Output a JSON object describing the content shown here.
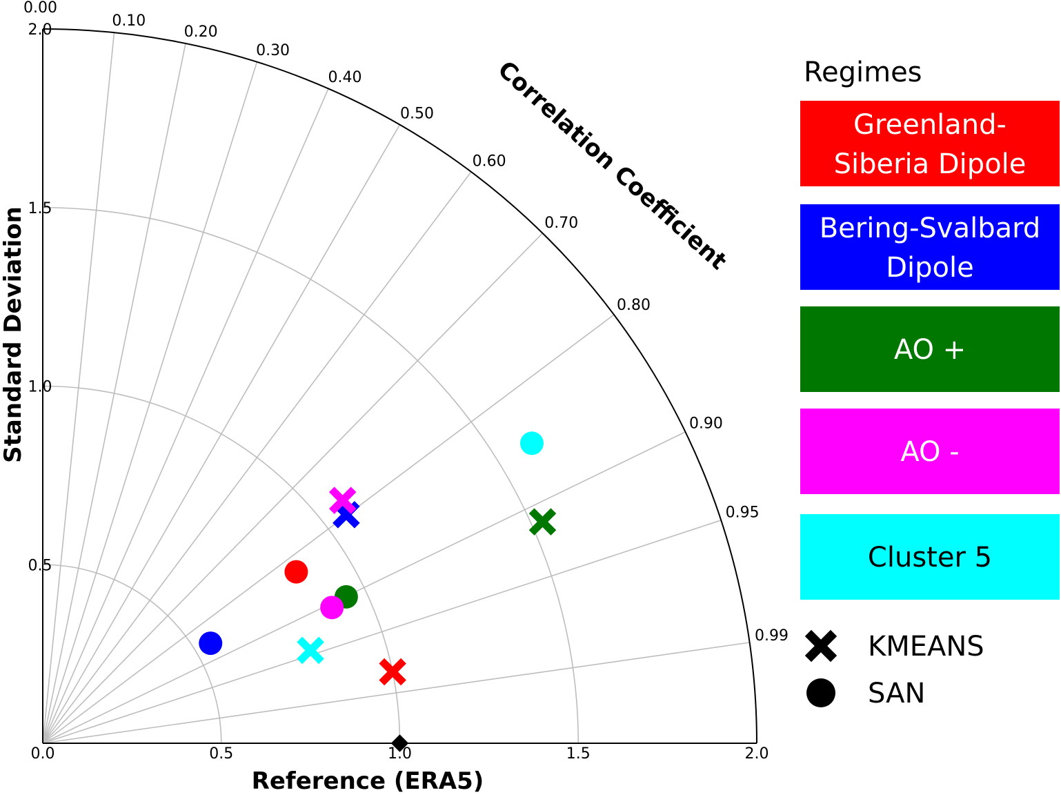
{
  "chart_data": {
    "type": "scatter",
    "subtype": "taylor-diagram",
    "xlabel": "Reference (ERA5)",
    "ylabel": "Standard Deviation",
    "angular_label": "Correlation Coefficient",
    "std_range": [
      0.0,
      2.0
    ],
    "std_ticks": [
      "0.0",
      "0.5",
      "1.0",
      "1.5",
      "2.0"
    ],
    "corr_ticks": [
      "0.00",
      "0.10",
      "0.20",
      "0.30",
      "0.40",
      "0.50",
      "0.60",
      "0.70",
      "0.80",
      "0.90",
      "0.95",
      "0.99"
    ],
    "grid": true,
    "reference_point": {
      "x": 1.0,
      "y": 0.0,
      "color": "#000000"
    },
    "legend": {
      "title": "Regimes",
      "placement": "right",
      "regimes": [
        {
          "label": "Greenland-\nSiberia Dipole",
          "line1": "Greenland-",
          "line2": "Siberia Dipole",
          "color": "#ff0000",
          "text_color": "#ffffff"
        },
        {
          "label": "Bering-Svalbard\nDipole",
          "line1": "Bering-Svalbard",
          "line2": "Dipole",
          "color": "#0000ff",
          "text_color": "#ffffff"
        },
        {
          "label": "AO +",
          "line1": "AO +",
          "line2": "",
          "color": "#007800",
          "text_color": "#ffffff"
        },
        {
          "label": "AO -",
          "line1": "AO -",
          "line2": "",
          "color": "#ff00ff",
          "text_color": "#ffffff"
        },
        {
          "label": "Cluster 5",
          "line1": "Cluster 5",
          "line2": "",
          "color": "#00ffff",
          "text_color": "#000000"
        }
      ],
      "markers": [
        {
          "label": "KMEANS",
          "symbol": "x"
        },
        {
          "label": "SAN",
          "symbol": "circle"
        }
      ]
    },
    "series": [
      {
        "name": "KMEANS",
        "marker": "x",
        "points": [
          {
            "regime": "Greenland-Siberia Dipole",
            "color": "#ff0000",
            "x": 0.98,
            "y": 0.2
          },
          {
            "regime": "Bering-Svalbard Dipole",
            "color": "#0000ff",
            "x": 0.85,
            "y": 0.64
          },
          {
            "regime": "AO +",
            "color": "#007800",
            "x": 1.4,
            "y": 0.62
          },
          {
            "regime": "AO -",
            "color": "#ff00ff",
            "x": 0.84,
            "y": 0.68
          },
          {
            "regime": "Cluster 5",
            "color": "#00ffff",
            "x": 0.75,
            "y": 0.26
          }
        ]
      },
      {
        "name": "SAN",
        "marker": "circle",
        "points": [
          {
            "regime": "Greenland-Siberia Dipole",
            "color": "#ff0000",
            "x": 0.71,
            "y": 0.48
          },
          {
            "regime": "Bering-Svalbard Dipole",
            "color": "#0000ff",
            "x": 0.47,
            "y": 0.28
          },
          {
            "regime": "AO +",
            "color": "#007800",
            "x": 0.85,
            "y": 0.41
          },
          {
            "regime": "AO -",
            "color": "#ff00ff",
            "x": 0.81,
            "y": 0.38
          },
          {
            "regime": "Cluster 5",
            "color": "#00ffff",
            "x": 1.37,
            "y": 0.84
          }
        ]
      }
    ]
  }
}
